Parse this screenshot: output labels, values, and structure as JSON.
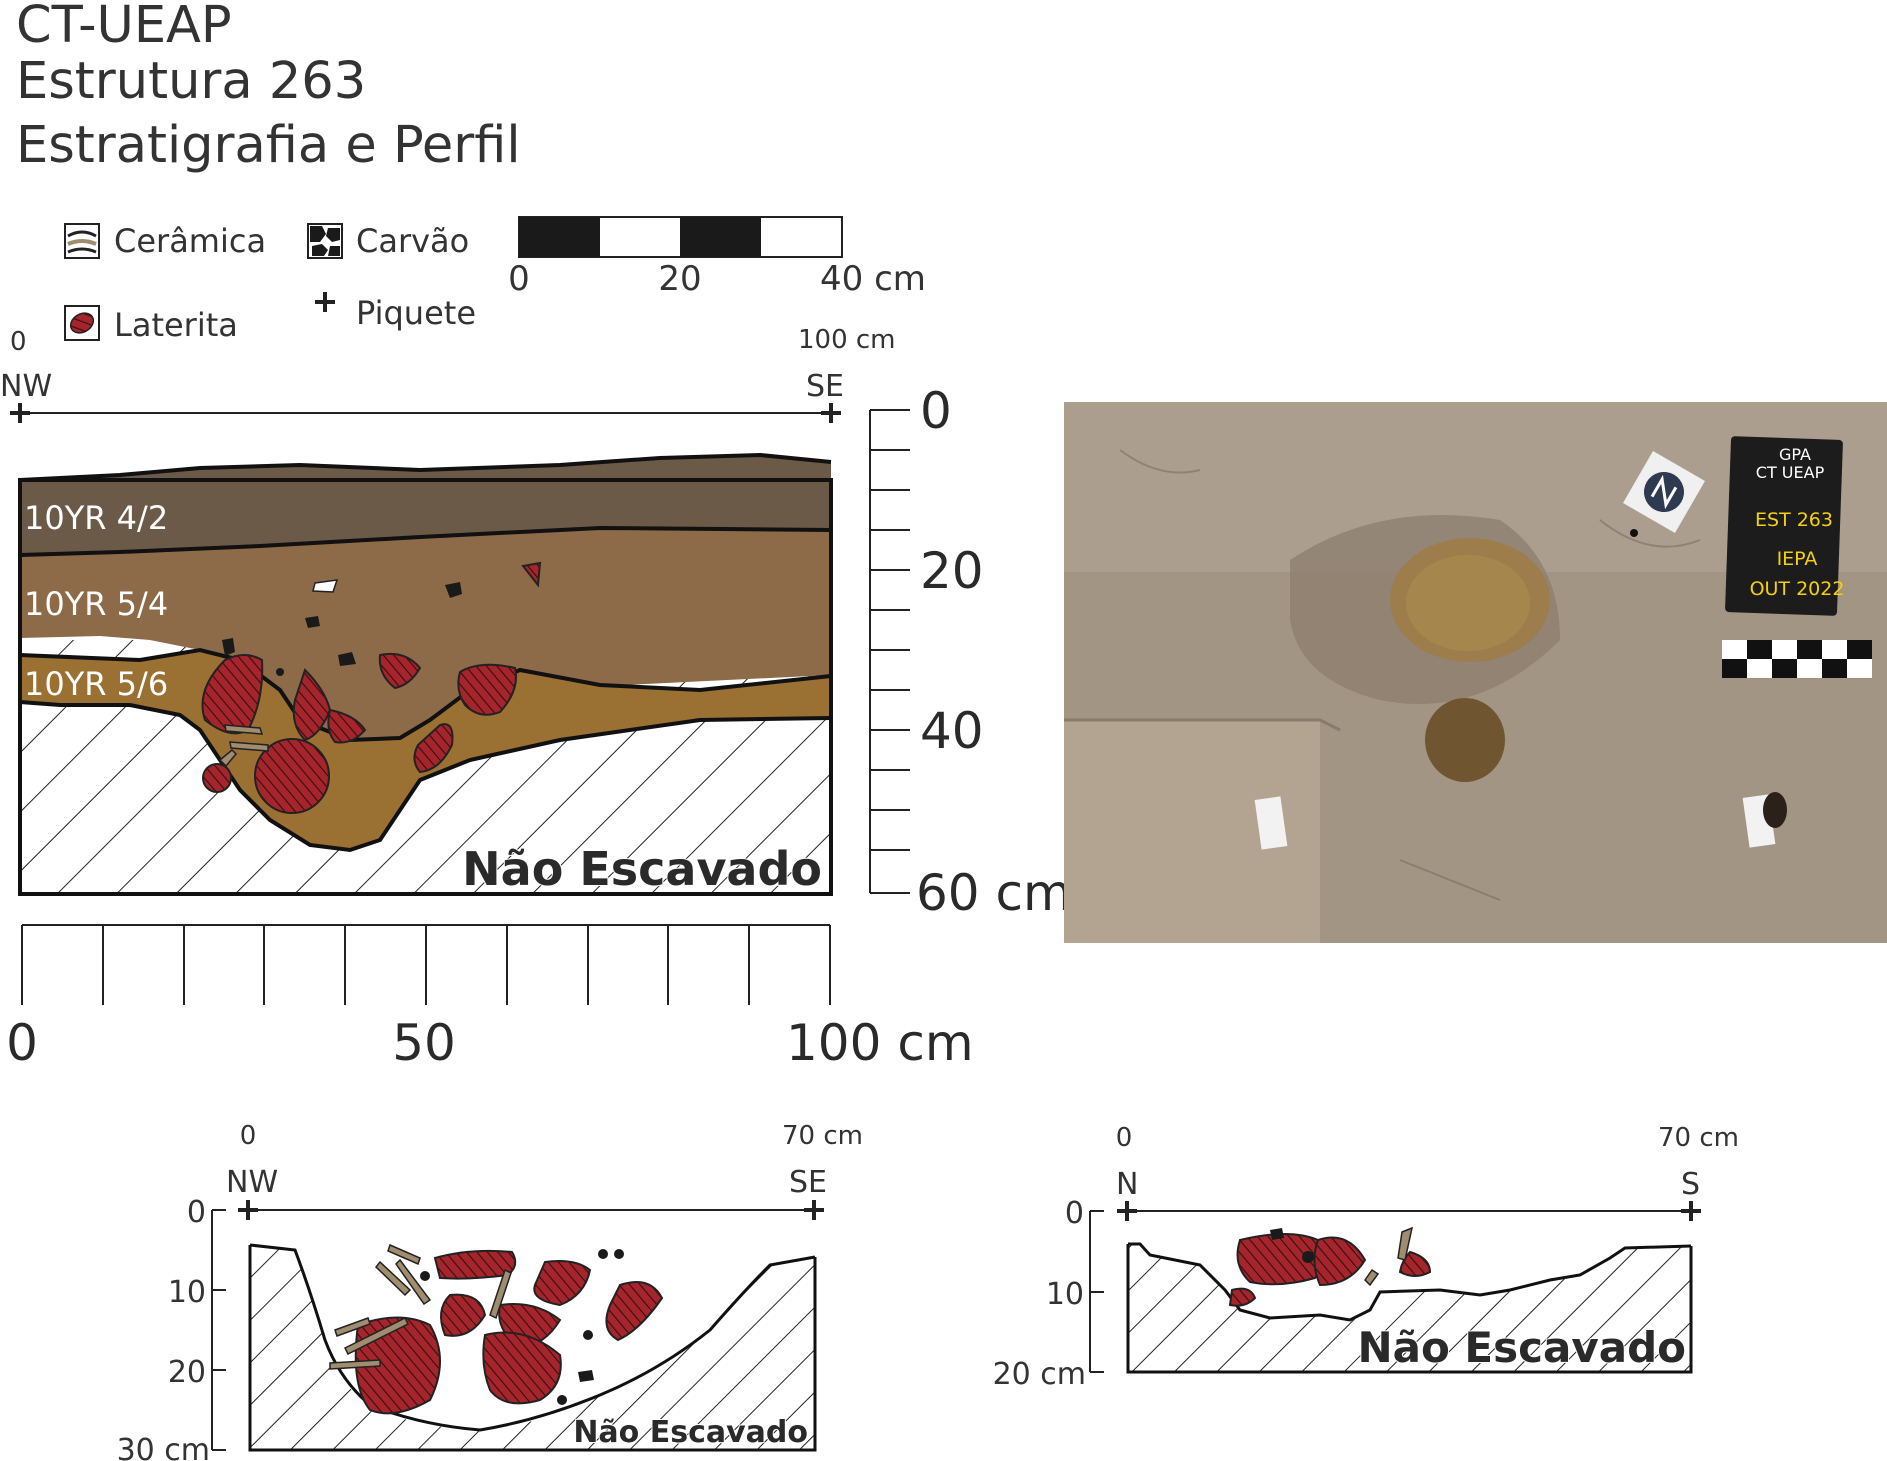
{
  "header": {
    "title_line1": "CT-UEAP",
    "title_line2": "Estrutura 263",
    "title_line3": "Estratigrafia e Perfil"
  },
  "legend": {
    "ceramica": "Cerâmica",
    "carvao": "Carvão",
    "laterita": "Laterita",
    "piquete": "Piquete",
    "piquete_symbol": "+",
    "colors": {
      "laterita": "#a4252c",
      "ceramica": "#a08c6e",
      "carvao": "#1a1a1a"
    }
  },
  "scale_bar": {
    "ticks": [
      "0",
      "20",
      "40 cm"
    ]
  },
  "main_profile": {
    "top_left": "0",
    "top_right": "100 cm",
    "left_dir": "NW",
    "right_dir": "SE",
    "layers": [
      {
        "label": "10YR 4/2",
        "color": "#6c5a49"
      },
      {
        "label": "10YR 5/4",
        "color": "#8d6b48"
      },
      {
        "label": "10YR 5/6",
        "color": "#9b7033"
      }
    ],
    "unexcavated": "Não Escavado",
    "depth_ticks": [
      "0",
      "20",
      "40",
      "60 cm"
    ],
    "horizontal_ticks": [
      "0",
      "50",
      "100 cm"
    ]
  },
  "photo": {
    "board_line1": "GPA",
    "board_line2": "CT UEAP",
    "board_line3": "EST 263",
    "board_line4": "IEPA",
    "board_line5": "OUT 2022"
  },
  "profile_nw_se": {
    "top_left": "0",
    "top_right": "70 cm",
    "left_dir": "NW",
    "right_dir": "SE",
    "depth_ticks": [
      "0",
      "10",
      "20",
      "30 cm"
    ],
    "unexcavated": "Não Escavado"
  },
  "profile_n_s": {
    "top_left": "0",
    "top_right": "70 cm",
    "left_dir": "N",
    "right_dir": "S",
    "depth_ticks": [
      "0",
      "10",
      "20 cm"
    ],
    "unexcavated": "Não Escavado"
  }
}
